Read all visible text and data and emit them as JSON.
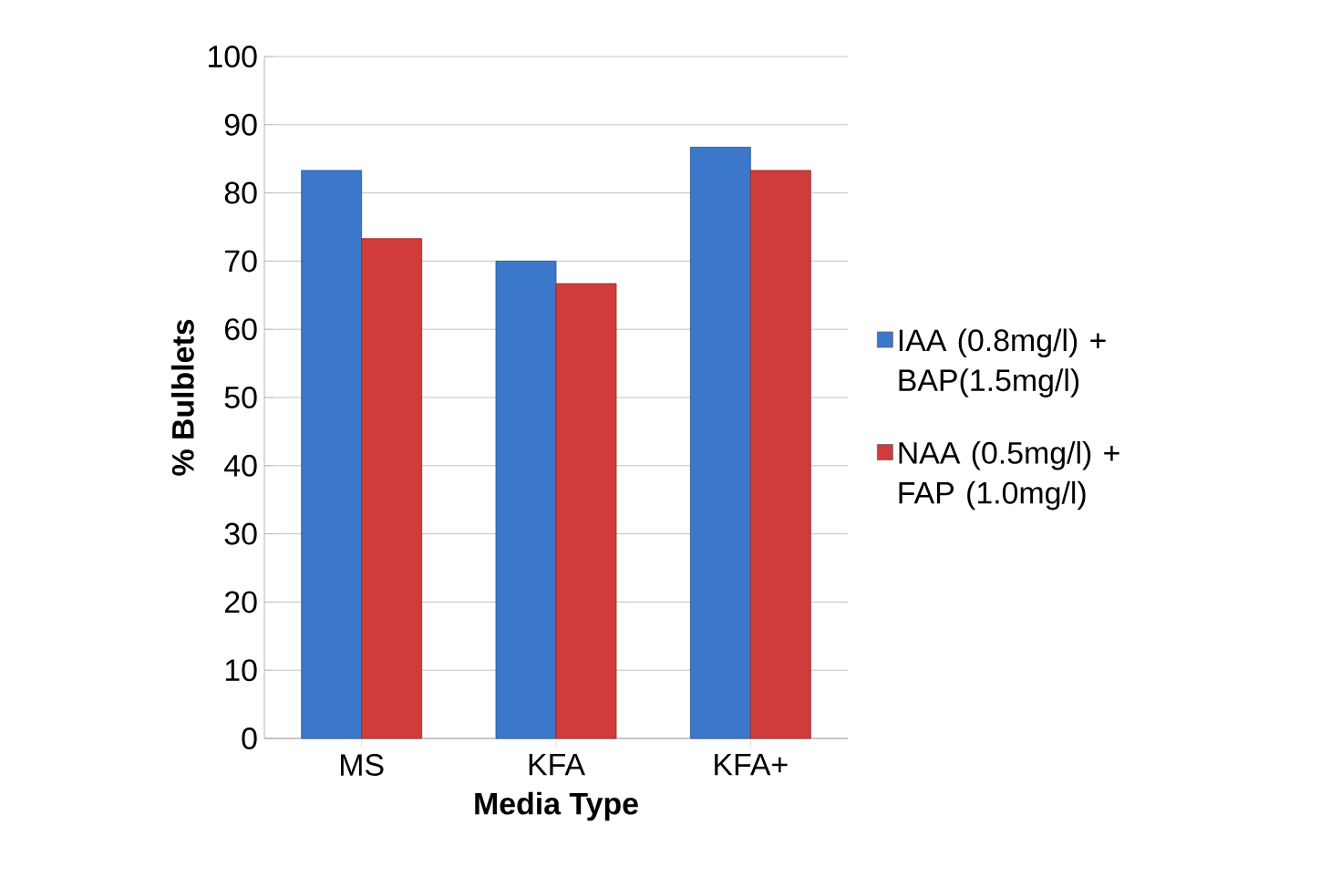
{
  "chart_data": {
    "type": "bar",
    "xlabel": "Media Type",
    "ylabel": "% Bulblets",
    "categories": [
      "MS",
      "KFA",
      "KFA+"
    ],
    "series": [
      {
        "name": "IAA (0.8mg/l) + BAP(1.5mg/l)",
        "color": "#3b78c9",
        "values": [
          83.3,
          70,
          86.7
        ]
      },
      {
        "name": "NAA (0.5mg/l) + FAP (1.0mg/l)",
        "color": "#d03b3b",
        "values": [
          73.3,
          66.7,
          83.3
        ]
      }
    ],
    "ylim": [
      0,
      100
    ],
    "yticks": [
      0,
      10,
      20,
      30,
      40,
      50,
      60,
      70,
      80,
      90,
      100
    ],
    "grid": "y",
    "legend": "right"
  }
}
